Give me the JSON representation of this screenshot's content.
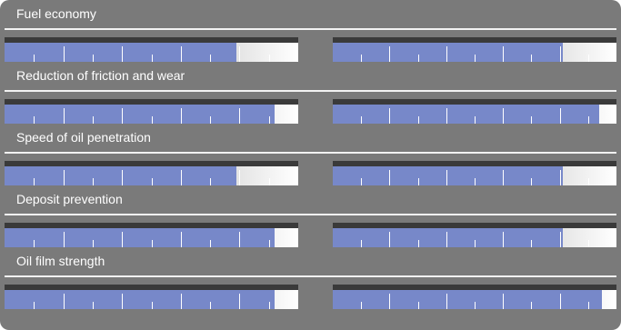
{
  "chart_data": {
    "type": "bar",
    "scale_max": 1,
    "series": [
      {
        "values": [
          0.79,
          0.92,
          0.79,
          0.92,
          0.92
        ]
      },
      {
        "values": [
          0.81,
          0.94,
          0.81,
          0.81,
          0.95
        ]
      }
    ],
    "rows": [
      {
        "label": "Fuel economy",
        "left": 0.79,
        "right": 0.81
      },
      {
        "label": "Reduction of friction and wear",
        "left": 0.92,
        "right": 0.94
      },
      {
        "label": "Speed of oil penetration",
        "left": 0.79,
        "right": 0.81
      },
      {
        "label": "Deposit prevention",
        "left": 0.92,
        "right": 0.81
      },
      {
        "label": "Oil film strength",
        "left": 0.92,
        "right": 0.95
      }
    ],
    "colors": {
      "fill": "#7788c9",
      "panel": "#7a7a7a",
      "divider": "#f2f2f2",
      "label_text": "#ffffff"
    }
  }
}
